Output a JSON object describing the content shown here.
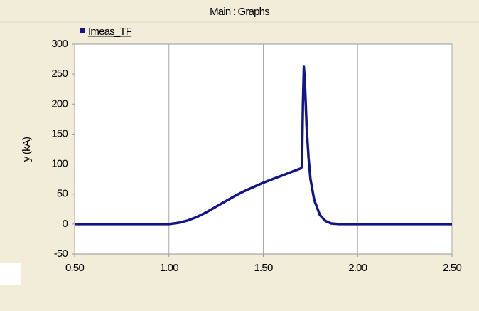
{
  "chart_data": {
    "type": "line",
    "title": "Main : Graphs",
    "ylabel": "y (kA)",
    "x": [
      0.5,
      1.0,
      1.05,
      1.1,
      1.15,
      1.2,
      1.25,
      1.3,
      1.35,
      1.4,
      1.45,
      1.5,
      1.55,
      1.6,
      1.65,
      1.7,
      1.705,
      1.71,
      1.715,
      1.72,
      1.725,
      1.73,
      1.74,
      1.75,
      1.77,
      1.8,
      1.83,
      1.86,
      1.9,
      2.5
    ],
    "series": [
      {
        "name": "Imeas_TF",
        "color": "#14148a",
        "values": [
          0,
          0,
          2,
          6,
          12,
          20,
          29,
          38,
          47,
          55,
          62,
          69,
          75,
          81,
          87,
          93,
          96,
          200,
          262,
          240,
          200,
          160,
          110,
          75,
          40,
          15,
          5,
          1,
          0,
          0
        ]
      }
    ],
    "xlim": [
      0.5,
      2.5
    ],
    "xticks": [
      {
        "value": 0.5,
        "label": "0.50"
      },
      {
        "value": 1.0,
        "label": "1.00"
      },
      {
        "value": 1.5,
        "label": "1.50"
      },
      {
        "value": 2.0,
        "label": "2.00"
      },
      {
        "value": 2.5,
        "label": "2.50"
      }
    ],
    "ylim": [
      -50,
      300
    ],
    "yticks": [
      -50,
      0,
      50,
      100,
      150,
      200,
      250,
      300
    ],
    "grid": "x"
  }
}
